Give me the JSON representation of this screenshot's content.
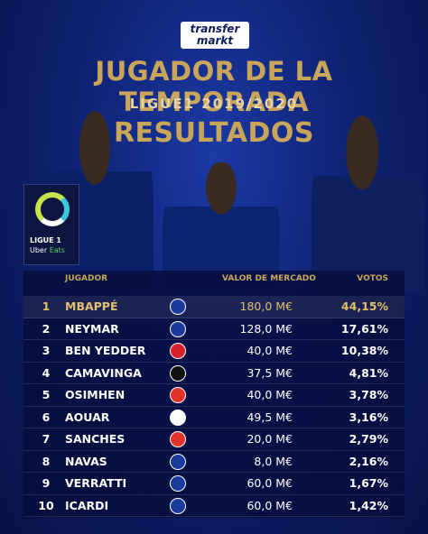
{
  "brand": {
    "line1": "transfer",
    "line2": "markt"
  },
  "title": "JUGADOR DE LA TEMPORADA",
  "subtitle": "LIGUE1 2019/2020",
  "results": "RESULTADOS",
  "league_badge": {
    "name": "LIGUE 1",
    "sponsor_a": "Uber",
    "sponsor_b": "Eats"
  },
  "headers": {
    "player": "JUGADOR",
    "value": "VALOR DE MERCADO",
    "votes": "VOTOS"
  },
  "rows": [
    {
      "rank": "1",
      "name": "MBAPPÉ",
      "value": "180,0 M€",
      "votes": "44,15%",
      "club_color": "#1a3a9c"
    },
    {
      "rank": "2",
      "name": "NEYMAR",
      "value": "128,0 M€",
      "votes": "17,61%",
      "club_color": "#1a3a9c"
    },
    {
      "rank": "3",
      "name": "BEN YEDDER",
      "value": "40,0 M€",
      "votes": "10,38%",
      "club_color": "#d4202a"
    },
    {
      "rank": "4",
      "name": "CAMAVINGA",
      "value": "37,5 M€",
      "votes": "4,81%",
      "club_color": "#111111"
    },
    {
      "rank": "5",
      "name": "OSIMHEN",
      "value": "40,0 M€",
      "votes": "3,78%",
      "club_color": "#e2322c"
    },
    {
      "rank": "6",
      "name": "AOUAR",
      "value": "49,5 M€",
      "votes": "3,16%",
      "club_color": "#ffffff"
    },
    {
      "rank": "7",
      "name": "SANCHES",
      "value": "20,0 M€",
      "votes": "2,79%",
      "club_color": "#e2322c"
    },
    {
      "rank": "8",
      "name": "NAVAS",
      "value": "8,0 M€",
      "votes": "2,16%",
      "club_color": "#1a3a9c"
    },
    {
      "rank": "9",
      "name": "VERRATTI",
      "value": "60,0 M€",
      "votes": "1,67%",
      "club_color": "#1a3a9c"
    },
    {
      "rank": "10",
      "name": "ICARDI",
      "value": "60,0 M€",
      "votes": "1,42%",
      "club_color": "#1a3a9c"
    }
  ],
  "colors": {
    "gold": "#c9a65a",
    "background": "#0f2273"
  }
}
